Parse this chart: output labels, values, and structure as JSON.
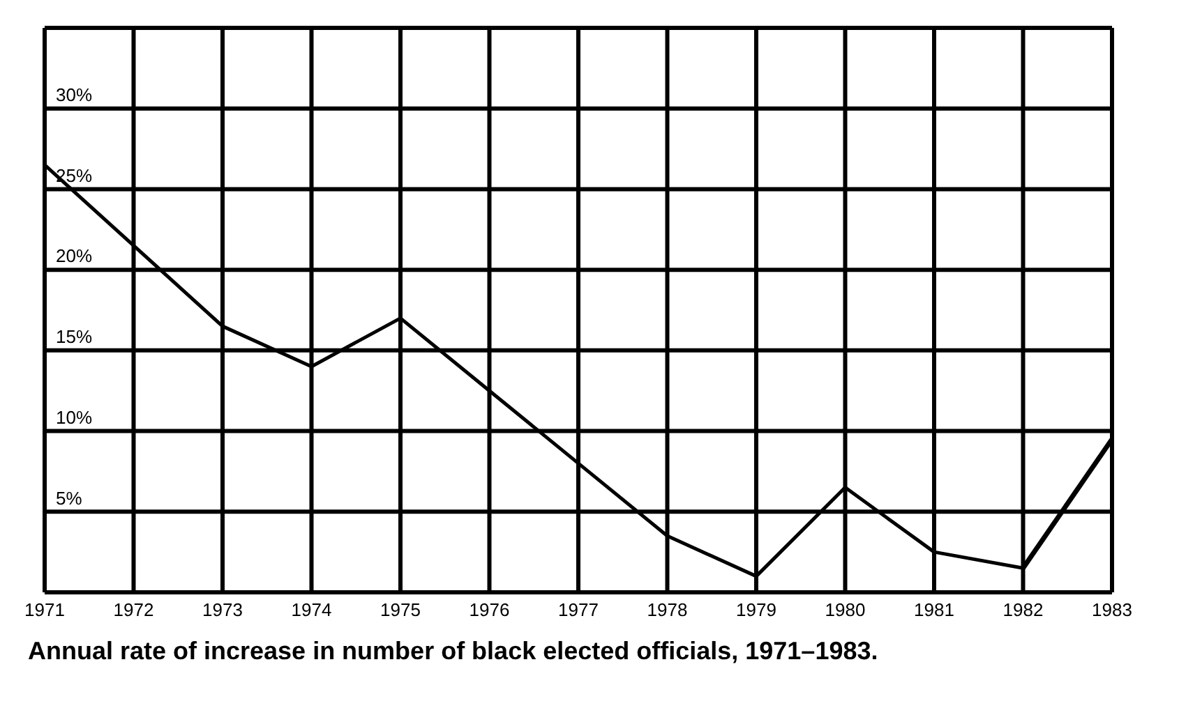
{
  "chart_data": {
    "type": "line",
    "title": "Annual rate of increase in number of black elected officials, 1971–1983.",
    "x": [
      1971,
      1972,
      1973,
      1974,
      1975,
      1976,
      1977,
      1978,
      1979,
      1980,
      1981,
      1982,
      1983
    ],
    "series": [
      {
        "color": "#000000",
        "line_style": "solid",
        "values": [
          26.5,
          21.5,
          16.5,
          14,
          17,
          12.5,
          8,
          3.5,
          1,
          6.5,
          2.5,
          1.5,
          null
        ]
      },
      {
        "color": "#000000",
        "line_style": "solid",
        "values": [
          null,
          null,
          null,
          null,
          null,
          null,
          null,
          null,
          null,
          null,
          null,
          1.5,
          9.5
        ]
      }
    ],
    "xlim": [
      1971,
      1983
    ],
    "xticks": [
      1971,
      1972,
      1973,
      1974,
      1975,
      1976,
      1977,
      1978,
      1979,
      1980,
      1981,
      1982,
      1983
    ],
    "ylim": [
      0,
      35
    ],
    "yticks": [
      {
        "value": 5,
        "label": "5%"
      },
      {
        "value": 10,
        "label": "10%"
      },
      {
        "value": 15,
        "label": "15%"
      },
      {
        "value": 20,
        "label": "20%"
      },
      {
        "value": 25,
        "label": "25%"
      },
      {
        "value": 30,
        "label": "30%"
      }
    ],
    "grid": true,
    "legend": false,
    "marker": "none"
  }
}
